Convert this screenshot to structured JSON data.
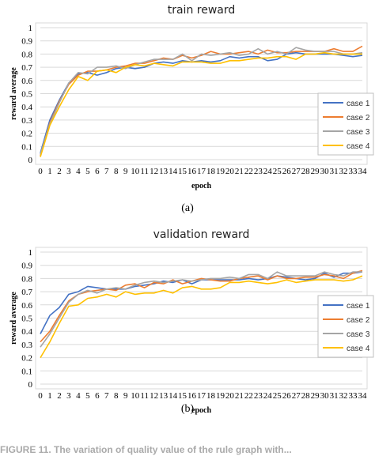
{
  "chart_data": [
    {
      "type": "line",
      "title": "train reward",
      "xlabel": "epoch",
      "ylabel": "reward average",
      "ylim": [
        0,
        1
      ],
      "yticks": [
        "0",
        "0.1",
        "0.2",
        "0.3",
        "0.4",
        "0.5",
        "0.6",
        "0.7",
        "0.8",
        "0.9",
        "1"
      ],
      "grid": true,
      "legend_position": "right",
      "x": [
        0,
        1,
        2,
        3,
        4,
        5,
        6,
        7,
        8,
        9,
        10,
        11,
        12,
        13,
        14,
        15,
        16,
        17,
        18,
        19,
        20,
        21,
        22,
        23,
        24,
        25,
        26,
        27,
        28,
        29,
        30,
        31,
        32,
        33,
        34
      ],
      "series": [
        {
          "name": "case 1",
          "color": "#4472C4",
          "values": [
            0.05,
            0.3,
            0.45,
            0.58,
            0.65,
            0.66,
            0.64,
            0.66,
            0.69,
            0.7,
            0.69,
            0.7,
            0.73,
            0.74,
            0.73,
            0.75,
            0.74,
            0.75,
            0.74,
            0.75,
            0.78,
            0.77,
            0.78,
            0.78,
            0.75,
            0.76,
            0.8,
            0.81,
            0.8,
            0.8,
            0.8,
            0.8,
            0.79,
            0.78,
            0.79
          ]
        },
        {
          "name": "case 2",
          "color": "#ED7D31",
          "values": [
            0.03,
            0.28,
            0.44,
            0.57,
            0.64,
            0.67,
            0.67,
            0.68,
            0.7,
            0.71,
            0.73,
            0.73,
            0.75,
            0.77,
            0.76,
            0.79,
            0.77,
            0.79,
            0.82,
            0.8,
            0.8,
            0.81,
            0.82,
            0.8,
            0.83,
            0.81,
            0.81,
            0.82,
            0.82,
            0.82,
            0.82,
            0.84,
            0.82,
            0.82,
            0.86
          ]
        },
        {
          "name": "case 3",
          "color": "#A5A5A5",
          "values": [
            0.04,
            0.27,
            0.43,
            0.58,
            0.66,
            0.65,
            0.7,
            0.7,
            0.71,
            0.69,
            0.72,
            0.74,
            0.76,
            0.76,
            0.76,
            0.8,
            0.75,
            0.8,
            0.79,
            0.8,
            0.81,
            0.79,
            0.8,
            0.84,
            0.8,
            0.82,
            0.8,
            0.85,
            0.83,
            0.82,
            0.82,
            0.82,
            0.8,
            0.8,
            0.81
          ]
        },
        {
          "name": "case 4",
          "color": "#FFC000",
          "values": [
            0.02,
            0.26,
            0.4,
            0.53,
            0.63,
            0.6,
            0.67,
            0.68,
            0.66,
            0.7,
            0.72,
            0.71,
            0.73,
            0.72,
            0.71,
            0.74,
            0.74,
            0.74,
            0.73,
            0.73,
            0.75,
            0.75,
            0.76,
            0.77,
            0.77,
            0.78,
            0.78,
            0.76,
            0.8,
            0.8,
            0.81,
            0.8,
            0.8,
            0.8,
            0.8
          ]
        }
      ]
    },
    {
      "type": "line",
      "title": "validation reward",
      "xlabel": "epoch",
      "ylabel": "reward average",
      "ylim": [
        0,
        1
      ],
      "yticks": [
        "0",
        "0.1",
        "0.2",
        "0.3",
        "0.4",
        "0.5",
        "0.6",
        "0.7",
        "0.8",
        "0.9",
        "1"
      ],
      "grid": true,
      "legend_position": "right",
      "x": [
        0,
        1,
        2,
        3,
        4,
        5,
        6,
        7,
        8,
        9,
        10,
        11,
        12,
        13,
        14,
        15,
        16,
        17,
        18,
        19,
        20,
        21,
        22,
        23,
        24,
        25,
        26,
        27,
        28,
        29,
        30,
        31,
        32,
        33,
        34
      ],
      "series": [
        {
          "name": "case 1",
          "color": "#4472C4",
          "values": [
            0.38,
            0.52,
            0.58,
            0.68,
            0.7,
            0.74,
            0.73,
            0.72,
            0.72,
            0.72,
            0.74,
            0.75,
            0.76,
            0.78,
            0.77,
            0.79,
            0.76,
            0.79,
            0.79,
            0.79,
            0.79,
            0.79,
            0.8,
            0.79,
            0.8,
            0.82,
            0.81,
            0.8,
            0.79,
            0.8,
            0.84,
            0.81,
            0.84,
            0.84,
            0.85
          ]
        },
        {
          "name": "case 2",
          "color": "#ED7D31",
          "values": [
            0.32,
            0.4,
            0.52,
            0.63,
            0.68,
            0.7,
            0.71,
            0.72,
            0.71,
            0.75,
            0.76,
            0.73,
            0.77,
            0.76,
            0.79,
            0.76,
            0.78,
            0.8,
            0.79,
            0.78,
            0.78,
            0.8,
            0.81,
            0.82,
            0.79,
            0.82,
            0.8,
            0.8,
            0.81,
            0.81,
            0.83,
            0.82,
            0.8,
            0.84,
            0.86
          ]
        },
        {
          "name": "case 3",
          "color": "#A5A5A5",
          "values": [
            0.28,
            0.38,
            0.5,
            0.62,
            0.68,
            0.71,
            0.69,
            0.72,
            0.73,
            0.72,
            0.75,
            0.77,
            0.78,
            0.77,
            0.78,
            0.79,
            0.78,
            0.79,
            0.8,
            0.8,
            0.81,
            0.8,
            0.83,
            0.83,
            0.8,
            0.85,
            0.82,
            0.82,
            0.82,
            0.82,
            0.85,
            0.83,
            0.82,
            0.85,
            0.85
          ]
        },
        {
          "name": "case 4",
          "color": "#FFC000",
          "values": [
            0.2,
            0.32,
            0.46,
            0.59,
            0.6,
            0.65,
            0.66,
            0.68,
            0.66,
            0.7,
            0.68,
            0.69,
            0.69,
            0.71,
            0.69,
            0.73,
            0.74,
            0.72,
            0.72,
            0.73,
            0.77,
            0.77,
            0.78,
            0.77,
            0.76,
            0.77,
            0.79,
            0.77,
            0.78,
            0.79,
            0.79,
            0.79,
            0.78,
            0.79,
            0.82
          ]
        }
      ]
    }
  ],
  "captions": {
    "a": "(a)",
    "b": "(b)",
    "figure": "FIGURE 11. The variation of quality value of the rule graph...",
    "figure_visible": "FIGURE 11.  The variation of quality value of the rule graph with..."
  }
}
